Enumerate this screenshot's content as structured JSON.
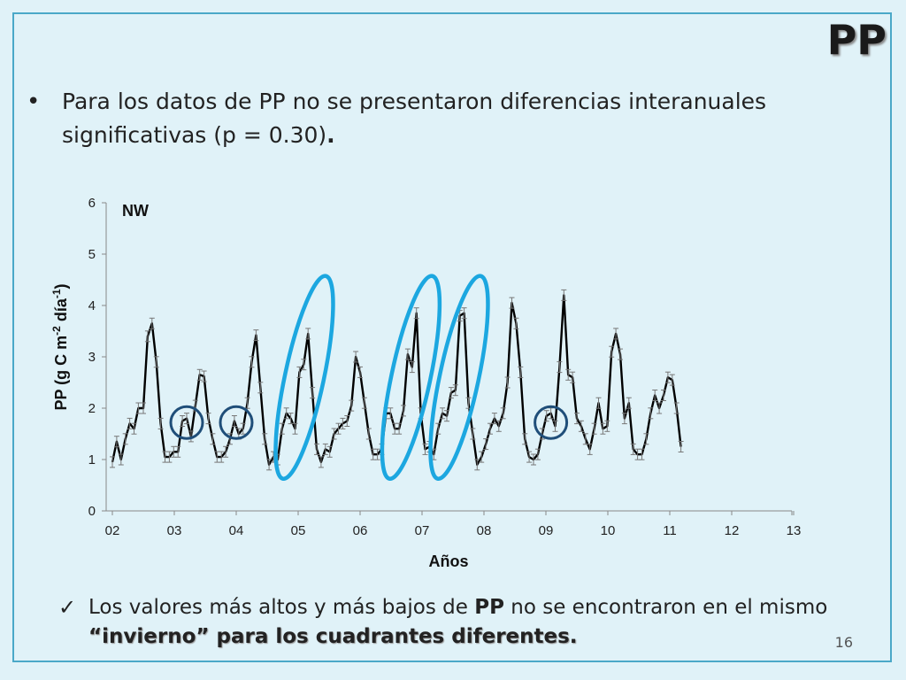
{
  "slide": {
    "title": "PP",
    "bullet": "Para los datos de PP no se presentaron diferencias interanuales significativas (p = 0.30)",
    "bullet_end": ".",
    "check_prefix": "Los valores más altos y más bajos de ",
    "check_bold": "PP",
    "check_mid": " no se encontraron en el mismo ",
    "check_emph": "“invierno” para los cuadrantes diferentes.",
    "page_number": "16",
    "bullet_symbol": "•",
    "check_symbol": "✓"
  },
  "chart_data": {
    "type": "line",
    "annotation": "NW",
    "xlabel": "Años",
    "ylabel": "PP (g C m-2 día-1)",
    "ylabel_parts": {
      "base": "PP (g C m",
      "sup1": "-2",
      "mid": " día",
      "sup2": "-1",
      "end": ")"
    },
    "ylim": [
      0,
      6
    ],
    "yticks": [
      0,
      1,
      2,
      3,
      4,
      5,
      6
    ],
    "xticks": [
      {
        "label": "02",
        "x": 0
      },
      {
        "label": "03",
        "x": 1
      },
      {
        "label": "04",
        "x": 2
      },
      {
        "label": "05",
        "x": 3
      },
      {
        "label": "06",
        "x": 4
      },
      {
        "label": "07",
        "x": 5
      },
      {
        "label": "08",
        "x": 6
      },
      {
        "label": "09",
        "x": 7
      },
      {
        "label": "10",
        "x": 8
      },
      {
        "label": "11",
        "x": 9
      },
      {
        "label": "12",
        "x": 10
      },
      {
        "label": "13",
        "x": 11
      }
    ],
    "xlim": [
      0,
      11.7
    ],
    "series_color": "#000000",
    "highlight_colors": {
      "dark": "#1f4e79",
      "light": "#1ca7e0"
    },
    "series": [
      {
        "values": [
          [
            0.0,
            0.95
          ],
          [
            0.07,
            1.35
          ],
          [
            0.14,
            1.0
          ],
          [
            0.21,
            1.4
          ],
          [
            0.28,
            1.7
          ],
          [
            0.35,
            1.6
          ],
          [
            0.42,
            2.0
          ],
          [
            0.5,
            2.0
          ],
          [
            0.57,
            3.4
          ],
          [
            0.64,
            3.65
          ],
          [
            0.71,
            2.9
          ],
          [
            0.78,
            1.7
          ],
          [
            0.85,
            1.05
          ],
          [
            0.92,
            1.05
          ],
          [
            0.99,
            1.15
          ],
          [
            1.06,
            1.15
          ],
          [
            1.13,
            1.75
          ],
          [
            1.2,
            1.8
          ],
          [
            1.27,
            1.45
          ],
          [
            1.34,
            2.05
          ],
          [
            1.41,
            2.65
          ],
          [
            1.48,
            2.62
          ],
          [
            1.55,
            1.8
          ],
          [
            1.62,
            1.4
          ],
          [
            1.69,
            1.05
          ],
          [
            1.76,
            1.05
          ],
          [
            1.83,
            1.15
          ],
          [
            1.9,
            1.4
          ],
          [
            1.97,
            1.75
          ],
          [
            2.04,
            1.5
          ],
          [
            2.11,
            1.6
          ],
          [
            2.18,
            2.1
          ],
          [
            2.25,
            2.9
          ],
          [
            2.32,
            3.42
          ],
          [
            2.39,
            2.4
          ],
          [
            2.46,
            1.4
          ],
          [
            2.53,
            0.9
          ],
          [
            2.6,
            1.05
          ],
          [
            2.67,
            1.0
          ],
          [
            2.74,
            1.6
          ],
          [
            2.81,
            1.9
          ],
          [
            2.88,
            1.8
          ],
          [
            2.95,
            1.6
          ],
          [
            3.02,
            2.7
          ],
          [
            3.09,
            2.85
          ],
          [
            3.16,
            3.45
          ],
          [
            3.23,
            2.3
          ],
          [
            3.3,
            1.2
          ],
          [
            3.37,
            0.95
          ],
          [
            3.44,
            1.2
          ],
          [
            3.51,
            1.15
          ],
          [
            3.58,
            1.5
          ],
          [
            3.65,
            1.6
          ],
          [
            3.72,
            1.7
          ],
          [
            3.79,
            1.75
          ],
          [
            3.86,
            2.05
          ],
          [
            3.93,
            3.0
          ],
          [
            4.0,
            2.7
          ],
          [
            4.07,
            2.1
          ],
          [
            4.14,
            1.5
          ],
          [
            4.21,
            1.1
          ],
          [
            4.28,
            1.1
          ],
          [
            4.35,
            1.2
          ],
          [
            4.42,
            1.9
          ],
          [
            4.49,
            1.9
          ],
          [
            4.56,
            1.6
          ],
          [
            4.63,
            1.6
          ],
          [
            4.7,
            1.95
          ],
          [
            4.77,
            3.05
          ],
          [
            4.84,
            2.8
          ],
          [
            4.91,
            3.85
          ],
          [
            4.98,
            1.9
          ],
          [
            5.05,
            1.2
          ],
          [
            5.12,
            1.25
          ],
          [
            5.19,
            1.1
          ],
          [
            5.26,
            1.6
          ],
          [
            5.33,
            1.9
          ],
          [
            5.4,
            1.85
          ],
          [
            5.47,
            2.3
          ],
          [
            5.54,
            2.35
          ],
          [
            5.61,
            3.8
          ],
          [
            5.68,
            3.85
          ],
          [
            5.75,
            2.1
          ],
          [
            5.82,
            1.5
          ],
          [
            5.89,
            0.9
          ],
          [
            5.96,
            1.05
          ],
          [
            6.03,
            1.3
          ],
          [
            6.1,
            1.6
          ],
          [
            6.17,
            1.8
          ],
          [
            6.24,
            1.65
          ],
          [
            6.31,
            1.9
          ],
          [
            6.38,
            2.5
          ],
          [
            6.45,
            4.05
          ],
          [
            6.52,
            3.65
          ],
          [
            6.59,
            2.7
          ],
          [
            6.66,
            1.4
          ],
          [
            6.73,
            1.05
          ],
          [
            6.8,
            1.0
          ],
          [
            6.87,
            1.1
          ],
          [
            6.94,
            1.5
          ],
          [
            7.01,
            1.85
          ],
          [
            7.08,
            1.9
          ],
          [
            7.15,
            1.65
          ],
          [
            7.22,
            2.8
          ],
          [
            7.29,
            4.2
          ],
          [
            7.36,
            2.65
          ],
          [
            7.43,
            2.6
          ],
          [
            7.5,
            1.8
          ],
          [
            7.57,
            1.65
          ],
          [
            7.64,
            1.4
          ],
          [
            7.71,
            1.2
          ],
          [
            7.78,
            1.6
          ],
          [
            7.85,
            2.1
          ],
          [
            7.92,
            1.6
          ],
          [
            7.99,
            1.65
          ],
          [
            8.06,
            3.1
          ],
          [
            8.13,
            3.45
          ],
          [
            8.2,
            3.05
          ],
          [
            8.27,
            1.8
          ],
          [
            8.34,
            2.1
          ],
          [
            8.41,
            1.2
          ],
          [
            8.48,
            1.1
          ],
          [
            8.55,
            1.1
          ],
          [
            8.62,
            1.4
          ],
          [
            8.69,
            1.9
          ],
          [
            8.76,
            2.25
          ],
          [
            8.83,
            2.0
          ],
          [
            8.9,
            2.25
          ],
          [
            8.97,
            2.6
          ],
          [
            9.04,
            2.55
          ],
          [
            9.11,
            2.0
          ],
          [
            9.18,
            1.25
          ]
        ]
      }
    ],
    "highlights": [
      {
        "kind": "small",
        "cx": 1.2,
        "cy": 1.72,
        "color": "dark"
      },
      {
        "kind": "small",
        "cx": 2.0,
        "cy": 1.72,
        "color": "dark"
      },
      {
        "kind": "small",
        "cx": 7.08,
        "cy": 1.72,
        "color": "dark"
      },
      {
        "kind": "large",
        "cx": 3.1,
        "cy": 2.6,
        "color": "light"
      },
      {
        "kind": "large",
        "cx": 4.82,
        "cy": 2.6,
        "color": "light"
      },
      {
        "kind": "large",
        "cx": 5.6,
        "cy": 2.6,
        "color": "light"
      }
    ]
  }
}
